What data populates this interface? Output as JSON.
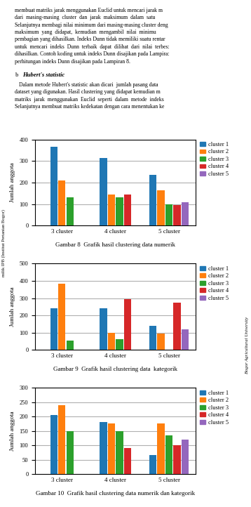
{
  "chart_data": [
    {
      "type": "bar",
      "title": "Gambar 8  Grafik hasil clustering data numerik",
      "ylabel": "Jumlah anggota",
      "categories": [
        "3 cluster",
        "4 cluster",
        "5 cluster"
      ],
      "series": [
        {
          "name": "cluster 1",
          "values": [
            365,
            315,
            235
          ]
        },
        {
          "name": "cluster 2",
          "values": [
            210,
            145,
            165
          ]
        },
        {
          "name": "cluster 3",
          "values": [
            130,
            130,
            100
          ]
        },
        {
          "name": "cluster 4",
          "values": [
            null,
            145,
            95
          ]
        },
        {
          "name": "cluster 5",
          "values": [
            null,
            null,
            110
          ]
        }
      ],
      "ylim": [
        0,
        400
      ],
      "yticks": [
        0,
        100,
        200,
        300,
        400
      ],
      "grid": true,
      "legend": "upper right",
      "annotations": [
        "membuat matriks jarak menggunakan Euclid untuk mencari jarak m\ndari  masing-masing  cluster  dan  jarak  maksimum  dalam  satu\nSelanjutnya membagi nilai minimum dari masing-masing cluster deng\nmaksimum  yang  didapat,  kemudian  mengambil  nilai  minimu\npembagian yang dihasilkan. Indeks Dunn tidak memiliki suatu rentar\nuntuk  mencari  indeks  Dunn  terbaik  dapat  dilihat  dari  nilai  terbes:\ndihasilkan. Contoh koding untuk indeks Dunn disajikan pada Lampira:\nperhitungan indeks Dunn disajikan pada Lampiran 8.",
        "b",
        "Hubert's statistic",
        "   Dalam metode Hubert's statistic akan dicari  jumlah pasang data\ndataset yang digunakan. Hasil clustering yang didapat kemudian m\nmatriks  jarak  menggunakan  Euclid  seperti  dalam  metode  indeks\nSelanjutnya membuat matriks kedekatan dengan cara menentukan ke",
        "milik IPB (Institut Pertanian Bogor)",
        "Bogor Agricultural University"
      ]
    },
    {
      "type": "bar",
      "title": "Gambar 9  Grafik hasil clustering data  kategorik",
      "ylabel": "Jumlah anggota",
      "categories": [
        "3 cluster",
        "4 cluster",
        "5 cluster"
      ],
      "series": [
        {
          "name": "cluster 1",
          "values": [
            240,
            240,
            140
          ]
        },
        {
          "name": "cluster 2",
          "values": [
            385,
            100,
            95
          ]
        },
        {
          "name": "cluster 3",
          "values": [
            55,
            60,
            0
          ]
        },
        {
          "name": "cluster 4",
          "values": [
            null,
            295,
            275
          ]
        },
        {
          "name": "cluster 5",
          "values": [
            null,
            null,
            120
          ]
        }
      ],
      "ylim": [
        0,
        500
      ],
      "yticks": [
        0,
        100,
        200,
        300,
        400,
        500
      ],
      "grid": true,
      "legend": "upper right"
    },
    {
      "type": "bar",
      "title": "Gambar 10  Grafik hasil clustering data numerik dan kategorik",
      "ylabel": "Jumlah anggota",
      "categories": [
        "3 cluster",
        "4 cluster",
        "5 cluster"
      ],
      "series": [
        {
          "name": "cluster 1",
          "values": [
            205,
            182,
            65
          ]
        },
        {
          "name": "cluster 2",
          "values": [
            240,
            175,
            175
          ]
        },
        {
          "name": "cluster 3",
          "values": [
            150,
            150,
            135
          ]
        },
        {
          "name": "cluster 4",
          "values": [
            null,
            90,
            100
          ]
        },
        {
          "name": "cluster 5",
          "values": [
            null,
            null,
            120
          ]
        }
      ],
      "ylim": [
        0,
        300
      ],
      "yticks": [
        0,
        50,
        100,
        150,
        200,
        250,
        300
      ],
      "grid": true,
      "legend": "upper right"
    }
  ]
}
